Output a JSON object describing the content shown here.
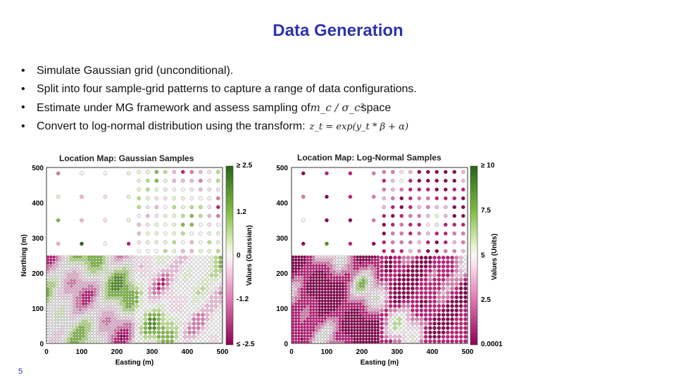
{
  "slide": {
    "title": "Data Generation",
    "bullets": [
      "Simulate Gaussian grid (unconditional).",
      "Split into four sample-grid patterns to capture a  range of data configurations.",
      "Estimate under MG framework and assess sampling of",
      "Convert to log-normal distribution using the transform:"
    ],
    "bullet3_suffix": "space",
    "math_mc": "m_c / σ_c²",
    "math_transform": "z_t = exp(y_t * β + α)",
    "page_number": "5"
  },
  "colors": {
    "title": "#2d35a8",
    "pink_dark": "#8e0152",
    "pink_light": "#f1b6da",
    "green_light": "#b8e186",
    "green_dark": "#276419"
  },
  "maps": [
    {
      "title": "Location Map: Gaussian Samples",
      "xlabel": "Easting (m)",
      "ylabel": "Northing (m)",
      "x_ticks": [
        "0",
        "100",
        "200",
        "300",
        "400",
        "500"
      ],
      "y_ticks": [
        "0",
        "100",
        "200",
        "300",
        "400",
        "500"
      ],
      "colorbar_label": "Values (Gaussian)",
      "colorbar_ticks": [
        "≥ 2.5",
        "1.2",
        "0",
        "-1.2",
        "≤ -2.5"
      ]
    },
    {
      "title": "Location Map: Log-Normal Samples",
      "xlabel": "Easting (m)",
      "ylabel": "",
      "x_ticks": [
        "0",
        "100",
        "200",
        "300",
        "400",
        "500"
      ],
      "y_ticks": [
        "0",
        "100",
        "200",
        "300",
        "400",
        "500"
      ],
      "colorbar_label": "Values (Units)",
      "colorbar_ticks": [
        "≥ 10",
        "7.5",
        "5",
        "2.5",
        "0.0001"
      ]
    }
  ],
  "chart_data": [
    {
      "type": "scatter",
      "title": "Location Map: Gaussian Samples",
      "xlabel": "Easting (m)",
      "ylabel": "Northing (m)",
      "xlim": [
        0,
        500
      ],
      "ylim": [
        0,
        500
      ],
      "colorbar": {
        "label": "Values (Gaussian)",
        "range": [
          -2.5,
          2.5
        ]
      },
      "sample_spacing_by_quadrant": {
        "upper_left": 67,
        "upper_right": 25,
        "lower_left": 8,
        "lower_right": 13
      }
    },
    {
      "type": "scatter",
      "title": "Location Map: Log-Normal Samples",
      "xlabel": "Easting (m)",
      "ylabel": "",
      "xlim": [
        0,
        500
      ],
      "ylim": [
        0,
        500
      ],
      "colorbar": {
        "label": "Values (Units)",
        "range": [
          0.0001,
          10
        ]
      },
      "sample_spacing_by_quadrant": {
        "upper_left": 67,
        "upper_right": 25,
        "lower_left": 8,
        "lower_right": 13
      }
    }
  ]
}
